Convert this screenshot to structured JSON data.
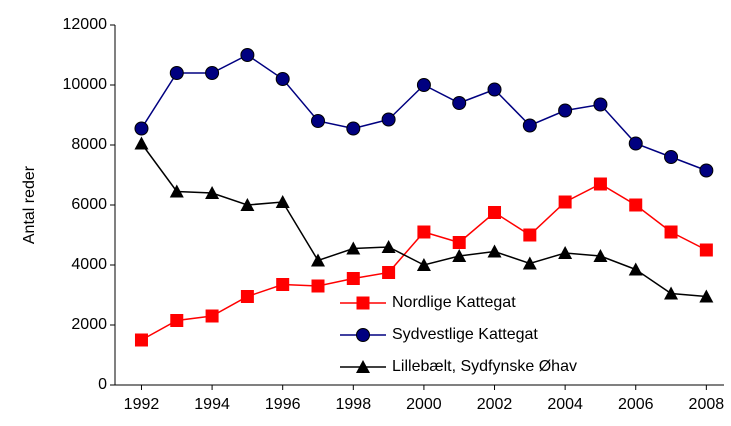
{
  "chart_data": {
    "type": "line",
    "y_label": "Antal reder",
    "x": [
      1992,
      1993,
      1994,
      1995,
      1996,
      1997,
      1998,
      1999,
      2000,
      2001,
      2002,
      2003,
      2004,
      2005,
      2006,
      2007,
      2008
    ],
    "series": [
      {
        "name": "Nordlige Kattegat",
        "color": "#ff0000",
        "marker": "square",
        "values": [
          1500,
          2150,
          2300,
          2950,
          3350,
          3300,
          3550,
          3750,
          5100,
          4750,
          5750,
          5000,
          6100,
          6700,
          6000,
          5100,
          4500
        ]
      },
      {
        "name": "Sydvestlige Kattegat",
        "color": "#000080",
        "marker": "circle",
        "values": [
          8550,
          10400,
          10400,
          11000,
          10200,
          8800,
          8550,
          8850,
          10000,
          9400,
          9850,
          8650,
          9150,
          9350,
          8050,
          7600,
          7150
        ]
      },
      {
        "name": "Lillebælt, Sydfynske Øhav",
        "color": "#000000",
        "marker": "triangle",
        "values": [
          8050,
          6450,
          6400,
          6000,
          6100,
          4150,
          4550,
          4600,
          4000,
          4300,
          4450,
          4050,
          4400,
          4300,
          3850,
          3050,
          2950
        ]
      }
    ],
    "xlim": [
      1991.25,
      2008.5
    ],
    "xticks": [
      1992,
      1994,
      1996,
      1998,
      2000,
      2002,
      2004,
      2006,
      2008
    ],
    "ylim": [
      0,
      12000
    ],
    "yticks": [
      0,
      2000,
      4000,
      6000,
      8000,
      10000,
      12000
    ],
    "grid": false,
    "legend_position": "lower-right"
  }
}
